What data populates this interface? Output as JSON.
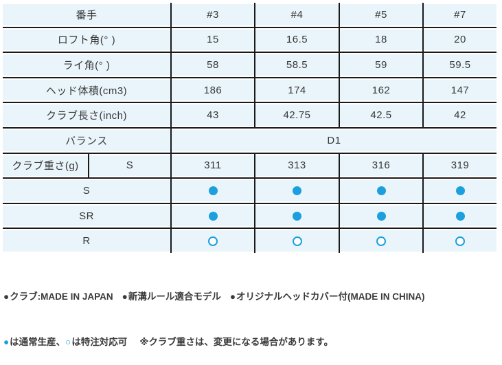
{
  "colors": {
    "cell_background": "#e9f5fb",
    "grid_line": "#1a1a1a",
    "text": "#383838",
    "accent_blue": "#1b9fde"
  },
  "chart_data": {
    "type": "table",
    "columns": [
      "番手",
      "#3",
      "#4",
      "#5",
      "#7"
    ],
    "rows": [
      {
        "type": "spec",
        "label": "番手",
        "values": [
          "#3",
          "#4",
          "#5",
          "#7"
        ]
      },
      {
        "type": "spec",
        "label": "ロフト角(° )",
        "values": [
          "15",
          "16.5",
          "18",
          "20"
        ]
      },
      {
        "type": "spec",
        "label": "ライ角(° )",
        "values": [
          "58",
          "58.5",
          "59",
          "59.5"
        ]
      },
      {
        "type": "spec",
        "label": "ヘッド体積(cm3)",
        "values": [
          "186",
          "174",
          "162",
          "147"
        ]
      },
      {
        "type": "spec",
        "label": "クラブ長さ(inch)",
        "values": [
          "43",
          "42.75",
          "42.5",
          "42"
        ]
      },
      {
        "type": "span",
        "label": "バランス",
        "value": "D1"
      },
      {
        "type": "split",
        "label": "クラブ重さ(g)",
        "sublabel": "S",
        "values": [
          "311",
          "313",
          "316",
          "319"
        ]
      },
      {
        "type": "dots",
        "label": "S",
        "dots": [
          "filled",
          "filled",
          "filled",
          "filled"
        ]
      },
      {
        "type": "dots",
        "label": "SR",
        "dots": [
          "filled",
          "filled",
          "filled",
          "filled"
        ]
      },
      {
        "type": "dots",
        "label": "R",
        "dots": [
          "open",
          "open",
          "open",
          "open"
        ]
      }
    ],
    "legend": {
      "filled_circle_meaning": "通常生産",
      "open_circle_meaning": "特注対応可"
    }
  },
  "footer": {
    "line1": [
      {
        "bullet": "filled-dark",
        "text": "クラブ:MADE IN JAPAN"
      },
      {
        "bullet": "filled-dark",
        "text": "新溝ルール適合モデル"
      },
      {
        "bullet": "filled-dark",
        "text": "オリジナルヘッドカバー付(MADE IN CHINA)"
      }
    ],
    "line2": [
      {
        "bullet": "filled-blue",
        "text": "は通常生産、"
      },
      {
        "bullet": "open-blue",
        "text": "は特注対応可"
      },
      {
        "bullet": "none",
        "text": "※クラブ重さは、変更になる場合があります。"
      }
    ]
  }
}
